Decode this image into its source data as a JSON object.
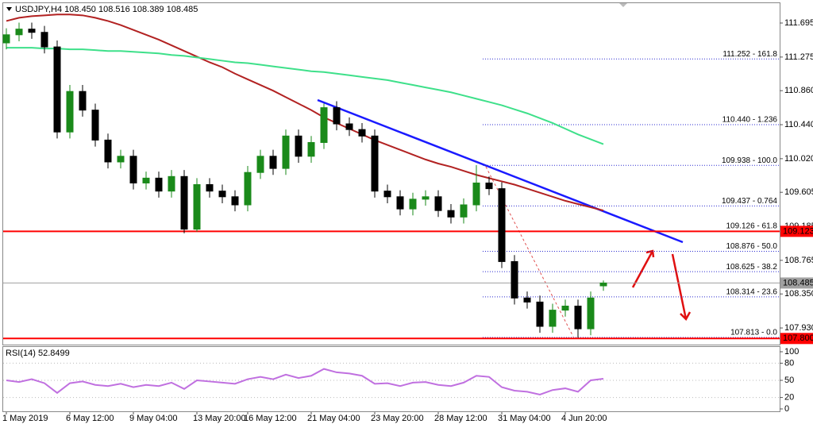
{
  "chart_data": [
    {
      "type": "candlestick",
      "title": "USDJPY,H4  108.450 108.516 108.389 108.485",
      "categories": [
        "1 May 2019",
        null,
        null,
        null,
        null,
        "6 May 12:00",
        null,
        null,
        null,
        null,
        "9 May 04:00",
        null,
        null,
        null,
        null,
        "13 May 20:00",
        null,
        null,
        null,
        "16 May 12:00",
        null,
        null,
        null,
        null,
        "21 May 04:00",
        null,
        null,
        null,
        null,
        "23 May 20:00",
        null,
        null,
        null,
        null,
        "28 May 12:00",
        null,
        null,
        null,
        null,
        "31 May 04:00",
        null,
        null,
        null,
        null,
        "4 Jun 20:00",
        null,
        null,
        null
      ],
      "open": [
        111.45,
        111.55,
        111.62,
        111.58,
        111.4,
        110.35,
        110.85,
        110.62,
        110.25,
        109.98,
        110.05,
        109.72,
        109.78,
        109.62,
        109.8,
        109.15,
        109.7,
        109.62,
        109.55,
        109.45,
        109.85,
        110.05,
        109.9,
        110.3,
        110.05,
        110.22,
        110.65,
        110.45,
        110.38,
        110.3,
        109.62,
        109.55,
        109.4,
        109.52,
        109.55,
        109.38,
        109.3,
        109.45,
        109.72,
        109.65,
        108.75,
        108.3,
        108.25,
        107.95,
        108.15,
        108.2,
        107.92,
        108.45
      ],
      "high": [
        111.63,
        111.7,
        111.7,
        111.66,
        111.48,
        110.93,
        110.93,
        110.7,
        110.33,
        110.13,
        110.13,
        109.86,
        109.86,
        109.88,
        109.88,
        109.78,
        109.78,
        109.7,
        109.63,
        109.93,
        110.13,
        110.13,
        110.38,
        110.38,
        110.3,
        110.7,
        110.73,
        110.53,
        110.46,
        110.38,
        109.7,
        109.63,
        109.6,
        109.63,
        109.63,
        109.46,
        109.53,
        109.94,
        109.8,
        109.73,
        108.83,
        108.38,
        108.33,
        108.23,
        108.28,
        108.28,
        108.38,
        108.516
      ],
      "low": [
        111.37,
        111.47,
        111.5,
        111.32,
        110.27,
        110.27,
        110.54,
        110.17,
        109.9,
        109.9,
        109.64,
        109.64,
        109.54,
        109.54,
        109.1,
        109.12,
        109.54,
        109.47,
        109.37,
        109.37,
        109.77,
        109.82,
        109.82,
        109.97,
        109.97,
        110.14,
        110.37,
        110.3,
        110.22,
        109.54,
        109.47,
        109.32,
        109.32,
        109.44,
        109.3,
        109.22,
        109.22,
        109.37,
        109.57,
        108.67,
        108.22,
        108.17,
        107.87,
        107.87,
        108.07,
        107.81,
        107.84,
        108.389
      ],
      "close": [
        111.55,
        111.62,
        111.58,
        111.4,
        110.35,
        110.85,
        110.62,
        110.25,
        109.98,
        110.05,
        109.72,
        109.78,
        109.62,
        109.8,
        109.15,
        109.7,
        109.62,
        109.55,
        109.45,
        109.85,
        110.05,
        109.9,
        110.3,
        110.05,
        110.22,
        110.65,
        110.45,
        110.38,
        110.3,
        109.62,
        109.55,
        109.4,
        109.52,
        109.55,
        109.38,
        109.3,
        109.45,
        109.72,
        109.65,
        108.75,
        108.3,
        108.25,
        107.95,
        108.15,
        108.2,
        107.92,
        108.3,
        108.485
      ],
      "up_color": "#1a8a1a",
      "down_color": "#000000",
      "series": [
        {
          "color": "#b22222",
          "values": [
            111.72,
            111.76,
            111.78,
            111.79,
            111.8,
            111.8,
            111.79,
            111.76,
            111.72,
            111.67,
            111.61,
            111.55,
            111.49,
            111.42,
            111.35,
            111.28,
            111.21,
            111.15,
            111.07,
            111.0,
            110.93,
            110.86,
            110.78,
            110.7,
            110.62,
            110.53,
            110.46,
            110.39,
            110.32,
            110.25,
            110.19,
            110.13,
            110.07,
            110.01,
            109.96,
            109.92,
            109.87,
            109.82,
            109.78,
            109.74,
            109.7,
            109.65,
            109.6,
            109.55,
            109.5,
            109.46,
            109.42,
            109.38
          ]
        },
        {
          "color": "#3ee08a",
          "values": [
            111.39,
            111.39,
            111.39,
            111.38,
            111.38,
            111.37,
            111.37,
            111.36,
            111.35,
            111.35,
            111.34,
            111.33,
            111.32,
            111.3,
            111.29,
            111.27,
            111.25,
            111.23,
            111.21,
            111.2,
            111.18,
            111.16,
            111.14,
            111.12,
            111.1,
            111.09,
            111.07,
            111.05,
            111.03,
            111.01,
            110.99,
            110.96,
            110.93,
            110.9,
            110.87,
            110.84,
            110.8,
            110.76,
            110.72,
            110.68,
            110.63,
            110.58,
            110.52,
            110.46,
            110.39,
            110.32,
            110.26,
            110.2
          ]
        }
      ],
      "ylim": [
        107.754,
        111.901
      ],
      "yticks": [
        111.695,
        111.275,
        {
          "value": 110.86,
          "label": "110.860"
        },
        {
          "value": 110.44,
          "label": "110.440"
        },
        {
          "value": 110.02,
          "label": "110.020"
        },
        109.605,
        109.185,
        108.765,
        {
          "value": 108.35,
          "label": "108.350"
        },
        {
          "value": 107.93,
          "label": "107.930"
        }
      ],
      "fib_color": "#2b2bd0",
      "fib_levels": [
        {
          "value": 111.252,
          "label": "111.252 - 161.8"
        },
        {
          "value": 110.44,
          "label": "110.440 - 1.236"
        },
        {
          "value": 109.938,
          "label": "109.938 - 100.0"
        },
        {
          "value": 109.437,
          "label": "109.437 - 0.764"
        },
        {
          "value": 109.126,
          "label": "109.126 - 61.8"
        },
        {
          "value": 108.876,
          "label": "108.876 - 50.0"
        },
        {
          "value": 108.625,
          "label": "108.625 - 38.2"
        },
        {
          "value": 108.314,
          "label": "108.314 - 23.6"
        },
        {
          "value": 107.813,
          "label": "107.813 - 0.0"
        }
      ],
      "price_lines": [
        {
          "value": 109.123,
          "color": "#ff0000"
        },
        {
          "value": 108.485,
          "color": "#a0a0a0"
        },
        {
          "value": 107.8,
          "label": "107.800",
          "color": "#ff0000"
        }
      ]
    },
    {
      "type": "line",
      "title": "RSI(14) 52.8499",
      "series": [
        {
          "color": "#c070e0",
          "values": [
            50,
            47,
            52,
            45,
            28,
            45,
            48,
            42,
            40,
            44,
            38,
            42,
            40,
            46,
            35,
            50,
            48,
            46,
            44,
            52,
            56,
            52,
            60,
            54,
            58,
            70,
            64,
            62,
            58,
            44,
            45,
            40,
            46,
            47,
            42,
            40,
            46,
            58,
            56,
            38,
            32,
            30,
            25,
            33,
            36,
            30,
            50,
            52.85
          ]
        }
      ],
      "ylim": [
        0,
        100
      ],
      "yticks": [
        0,
        20,
        50,
        80,
        100
      ]
    }
  ]
}
